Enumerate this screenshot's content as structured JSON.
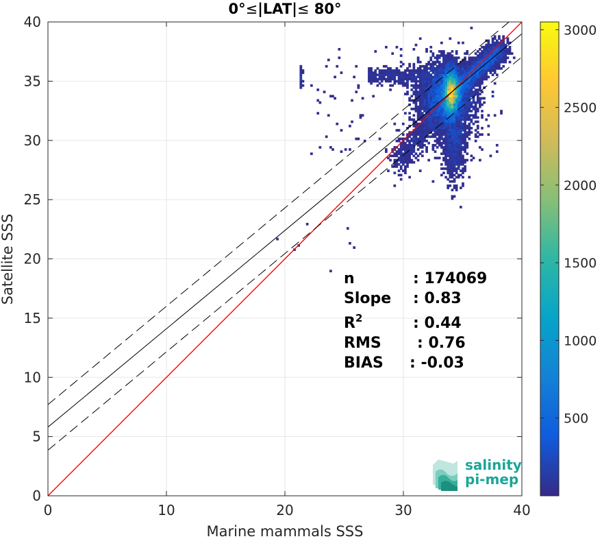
{
  "chart_data": {
    "type": "heatmap",
    "title_parts": [
      "0°",
      "≤",
      "|LAT|",
      "≤",
      " 80°"
    ],
    "xlabel": "Marine mammals SSS",
    "ylabel": "Satellite SSS",
    "xlim": [
      0,
      40
    ],
    "ylim": [
      0,
      40
    ],
    "xticks": [
      "0",
      "10",
      "20",
      "30",
      "40"
    ],
    "yticks": [
      "0",
      "5",
      "10",
      "15",
      "20",
      "25",
      "30",
      "35",
      "40"
    ],
    "grid": true,
    "colorbar": {
      "range": [
        0,
        3050
      ],
      "ticks": [
        "500",
        "1000",
        "1500",
        "2000",
        "2500",
        "3000"
      ],
      "colormap": "parula"
    },
    "lines": [
      {
        "kind": "identity",
        "slope": 1.0,
        "intercept": 0.0,
        "color": "#ff0000",
        "style": "solid"
      },
      {
        "kind": "regression",
        "slope": 0.83,
        "intercept": 5.8,
        "color": "#000000",
        "style": "solid"
      },
      {
        "kind": "regression_upper",
        "slope": 0.83,
        "intercept": 7.7,
        "color": "#000000",
        "style": "dashed"
      },
      {
        "kind": "regression_lower",
        "slope": 0.83,
        "intercept": 3.85,
        "color": "#000000",
        "style": "dashed"
      }
    ],
    "density_peak": {
      "x": 34.0,
      "y": 34.0,
      "count": 3050
    },
    "stats": [
      {
        "key": "n",
        "sup": "",
        "value": ": 174069"
      },
      {
        "key": "Slope",
        "sup": "",
        "value": ": 0.83"
      },
      {
        "key": "R",
        "sup": "2",
        "value": ": 0.44"
      },
      {
        "key": "RMS",
        "sup": "",
        "value": ": 0.76"
      },
      {
        "key": "BIAS",
        "sup": "",
        "value": ": -0.03"
      }
    ]
  },
  "logo": {
    "line1": "salinity",
    "line2": "pi-mep",
    "color": "#1aa698"
  }
}
